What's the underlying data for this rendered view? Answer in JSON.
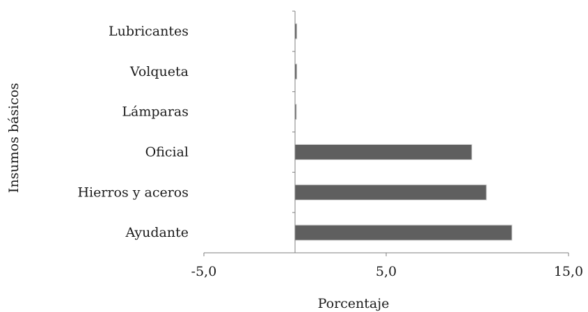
{
  "chart_data": {
    "type": "bar",
    "orientation": "horizontal",
    "categories": [
      "Lubricantes",
      "Volqueta",
      "Lámparas",
      "Oficial",
      "Hierros y aceros",
      "Ayudante"
    ],
    "values": [
      0.1,
      0.1,
      0.05,
      9.7,
      10.5,
      11.9
    ],
    "xlabel": "Porcentaje",
    "ylabel": "Insumos básicos",
    "xlim": [
      -5,
      15
    ],
    "xticks": [
      "-5,0",
      "5,0",
      "15,0"
    ],
    "xtick_values": [
      -5,
      5,
      15
    ],
    "grid": false,
    "legend": "none",
    "bar_color": "#5f5f5f"
  }
}
